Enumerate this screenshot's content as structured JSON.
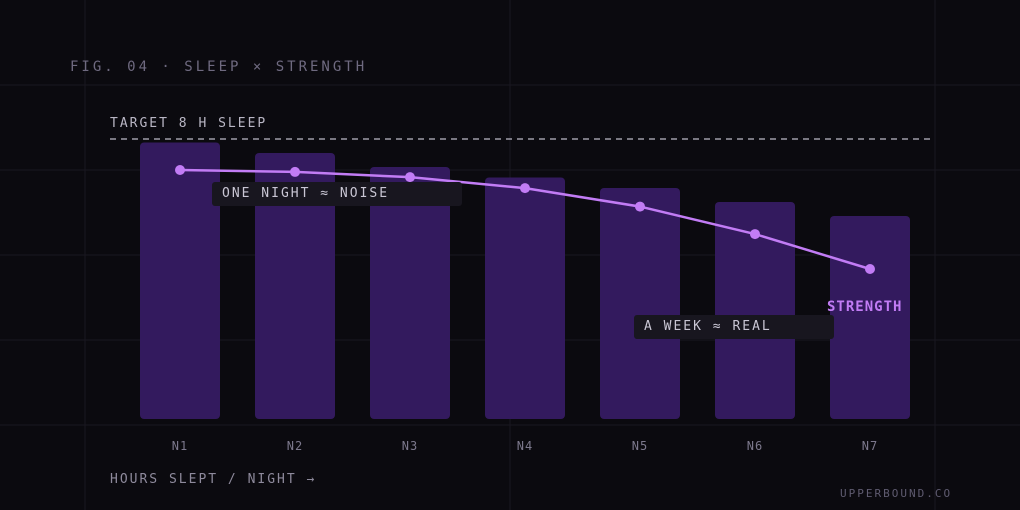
{
  "figure": {
    "title": "FIG. 04 · SLEEP × STRENGTH",
    "brand": "UPPERBOUND.CO"
  },
  "colors": {
    "background": "#0b0a0f",
    "grid": "#1a1820",
    "bar": "#331a5e",
    "line": "#c27cf5",
    "annotation_bg": "#18161f"
  },
  "chart_data": {
    "type": "bar",
    "categories": [
      "N1",
      "N2",
      "N3",
      "N4",
      "N5",
      "N6",
      "N7"
    ],
    "series": [
      {
        "type": "bar",
        "values": [
          7.9,
          7.6,
          7.2,
          6.9,
          6.6,
          6.2,
          5.8
        ]
      },
      {
        "type": "line",
        "name": "STRENGTH",
        "values": [
          100,
          99.3,
          97.4,
          93.4,
          86.7,
          76.7,
          64
        ]
      }
    ],
    "reference_line": {
      "label": "TARGET 8 H SLEEP",
      "value": 8
    },
    "annotations": [
      "ONE NIGHT ≈ NOISE",
      "A WEEK ≈ REAL"
    ],
    "xlabel": "HOURS SLEPT / NIGHT →",
    "ylabel": "",
    "ylim": [
      0,
      8
    ],
    "line_ylim": [
      0,
      100
    ],
    "grid": true,
    "legend": "none"
  }
}
